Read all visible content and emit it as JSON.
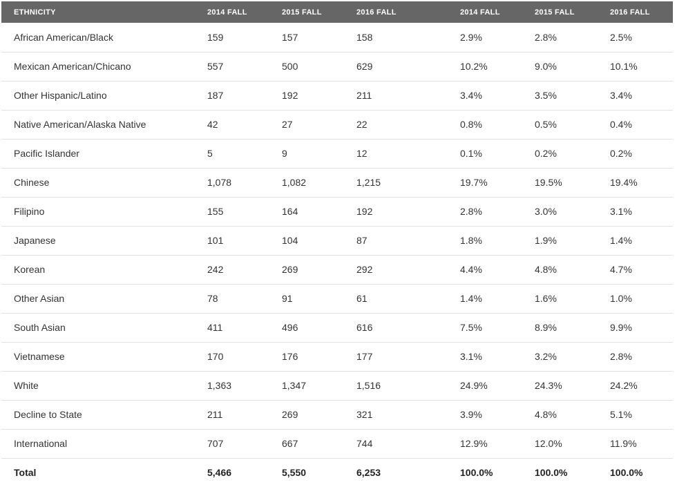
{
  "table": {
    "headers": [
      "ETHNICITY",
      "2014 FALL",
      "2015 FALL",
      "2016 FALL",
      "2014 FALL",
      "2015 FALL",
      "2016 FALL"
    ],
    "rows": [
      [
        "African American/Black",
        "159",
        "157",
        "158",
        "2.9%",
        "2.8%",
        "2.5%"
      ],
      [
        "Mexican American/Chicano",
        "557",
        "500",
        "629",
        "10.2%",
        "9.0%",
        "10.1%"
      ],
      [
        "Other Hispanic/Latino",
        "187",
        "192",
        "211",
        "3.4%",
        "3.5%",
        "3.4%"
      ],
      [
        "Native American/Alaska Native",
        "42",
        "27",
        "22",
        "0.8%",
        "0.5%",
        "0.4%"
      ],
      [
        "Pacific Islander",
        "5",
        "9",
        "12",
        "0.1%",
        "0.2%",
        "0.2%"
      ],
      [
        "Chinese",
        "1,078",
        "1,082",
        "1,215",
        "19.7%",
        "19.5%",
        "19.4%"
      ],
      [
        "Filipino",
        "155",
        "164",
        "192",
        "2.8%",
        "3.0%",
        "3.1%"
      ],
      [
        "Japanese",
        "101",
        "104",
        "87",
        "1.8%",
        "1.9%",
        "1.4%"
      ],
      [
        "Korean",
        "242",
        "269",
        "292",
        "4.4%",
        "4.8%",
        "4.7%"
      ],
      [
        "Other Asian",
        "78",
        "91",
        "61",
        "1.4%",
        "1.6%",
        "1.0%"
      ],
      [
        "South Asian",
        "411",
        "496",
        "616",
        "7.5%",
        "8.9%",
        "9.9%"
      ],
      [
        "Vietnamese",
        "170",
        "176",
        "177",
        "3.1%",
        "3.2%",
        "2.8%"
      ],
      [
        "White",
        "1,363",
        "1,347",
        "1,516",
        "24.9%",
        "24.3%",
        "24.2%"
      ],
      [
        "Decline to State",
        "211",
        "269",
        "321",
        "3.9%",
        "4.8%",
        "5.1%"
      ],
      [
        "International",
        "707",
        "667",
        "744",
        "12.9%",
        "12.0%",
        "11.9%"
      ]
    ],
    "total": [
      "Total",
      "5,466",
      "5,550",
      "6,253",
      "100.0%",
      "100.0%",
      "100.0%"
    ]
  },
  "colors": {
    "header_bg": "#666666",
    "header_text": "#ffffff",
    "row_divider": "#e2e2e2",
    "body_text": "#333333"
  }
}
